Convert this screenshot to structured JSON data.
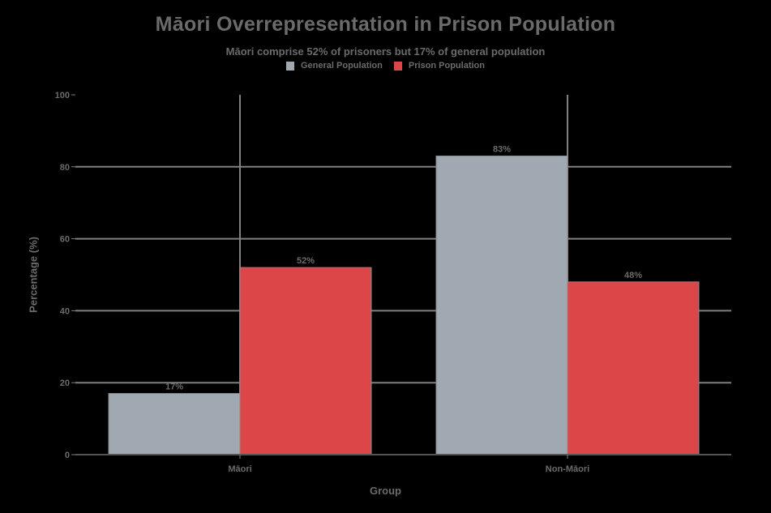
{
  "chart": {
    "title": "Māori Overrepresentation in Prison Population",
    "subtitle": "Māori comprise 52% of prisoners but 17% of general population",
    "legend": [
      {
        "label": "General Population",
        "color": "#a0a8b1"
      },
      {
        "label": "Prison Population",
        "color": "#dc4649"
      }
    ],
    "xlabel": "Group",
    "ylabel": "Percentage (%)"
  },
  "chart_data": {
    "type": "bar",
    "title": "Māori Overrepresentation in Prison Population",
    "subtitle": "Māori comprise 52% of prisoners but 17% of general population",
    "categories": [
      "Māori",
      "Non-Māori"
    ],
    "series": [
      {
        "name": "General Population",
        "color": "#a0a8b1",
        "values": [
          17,
          83
        ],
        "labels": [
          "17%",
          "83%"
        ]
      },
      {
        "name": "Prison Population",
        "color": "#dc4649",
        "values": [
          52,
          48
        ],
        "labels": [
          "52%",
          "48%"
        ]
      }
    ],
    "xlabel": "Group",
    "ylabel": "Percentage (%)",
    "ylim": [
      0,
      100
    ],
    "yticks": [
      0,
      20,
      40,
      60,
      80,
      100
    ],
    "grid": true,
    "legend_position": "top-center"
  }
}
